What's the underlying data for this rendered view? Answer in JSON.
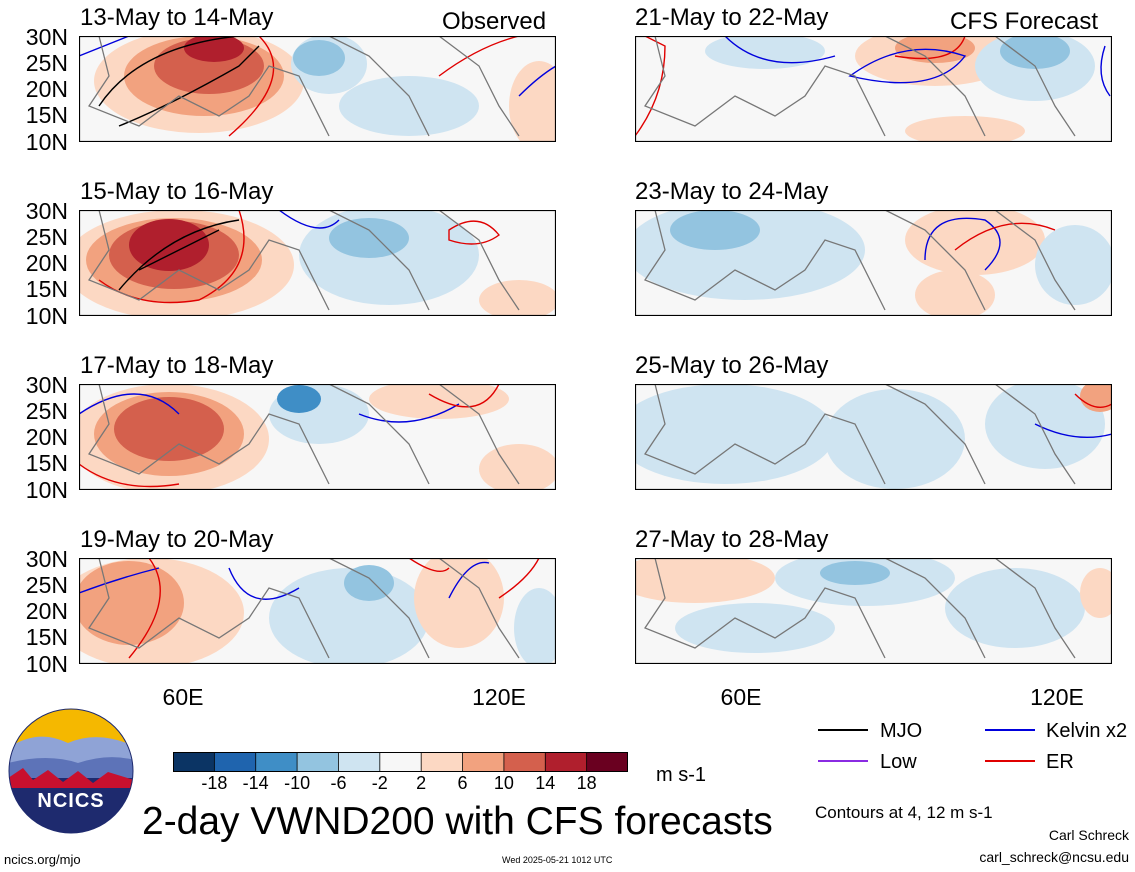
{
  "panels": [
    {
      "title": "13-May to 14-May",
      "note": "Observed"
    },
    {
      "title": "15-May to 16-May",
      "note": ""
    },
    {
      "title": "17-May to 18-May",
      "note": ""
    },
    {
      "title": "19-May to 20-May",
      "note": ""
    },
    {
      "title": "21-May to 22-May",
      "note": "CFS Forecast"
    },
    {
      "title": "23-May to 24-May",
      "note": ""
    },
    {
      "title": "25-May to 26-May",
      "note": ""
    },
    {
      "title": "27-May to 28-May",
      "note": ""
    }
  ],
  "lat_labels": [
    "30N",
    "25N",
    "20N",
    "15N",
    "10N"
  ],
  "lon_labels": [
    "60E",
    "120E"
  ],
  "colorbar": {
    "colors": [
      "#0b3464",
      "#1f64ae",
      "#3f8ec6",
      "#93c4e0",
      "#cfe4f1",
      "#f7f7f7",
      "#fcd8c3",
      "#f2a27f",
      "#d4604d",
      "#b01f2d",
      "#6a0020"
    ],
    "ticks": [
      "-18",
      "-14",
      "-10",
      "-6",
      "-2",
      "2",
      "6",
      "10",
      "14",
      "18"
    ],
    "units": "m s-1"
  },
  "legend": {
    "mjo": {
      "label": "MJO",
      "color": "#000000"
    },
    "kelvin": {
      "label": "Kelvin x2",
      "color": "#0000dd"
    },
    "low": {
      "label": "Low",
      "color": "#8a2be2"
    },
    "er": {
      "label": "ER",
      "color": "#e00000"
    }
  },
  "title": "2-day VWND200 with CFS forecasts",
  "contours_note": "Contours at 4, 12 m s-1",
  "author": "Carl Schreck",
  "email": "carl_schreck@ncsu.edu",
  "website": "ncics.org/mjo",
  "timestamp": "Wed 2025-05-21 1012 UTC",
  "logo": {
    "text": "NCICS"
  }
}
